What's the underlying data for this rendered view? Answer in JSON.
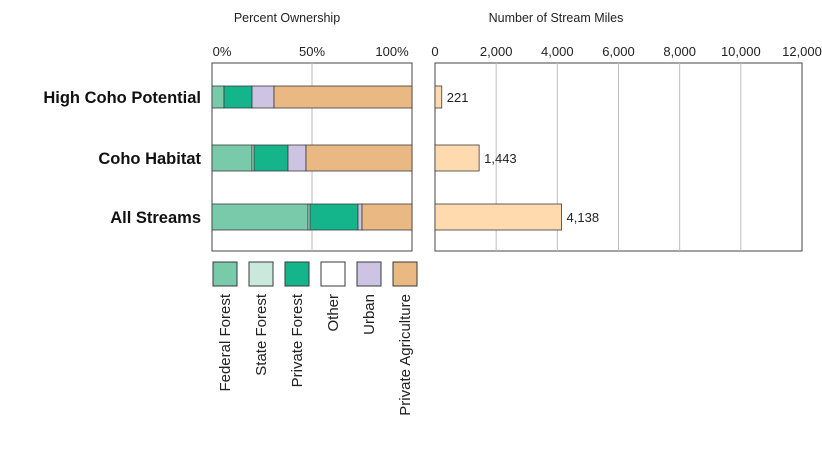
{
  "chart_data": [
    {
      "type": "bar",
      "orientation": "horizontal",
      "stacked": true,
      "percent": true,
      "title": "Percent Ownership",
      "categories": [
        "High Coho Potential",
        "Coho Habitat",
        "All Streams"
      ],
      "xlim": [
        0,
        100
      ],
      "ticks": [
        "0%",
        "50%",
        "100%"
      ],
      "grid": true,
      "series": [
        {
          "name": "Federal Forest",
          "color": "#79c9ab",
          "values": [
            6,
            20,
            48
          ]
        },
        {
          "name": "State Forest",
          "color": "#c9e9dc",
          "values": [
            0,
            1,
            1
          ]
        },
        {
          "name": "Private Forest",
          "color": "#14b58a",
          "values": [
            14,
            17,
            24
          ]
        },
        {
          "name": "Other",
          "color": "#ffffff",
          "values": [
            0,
            0,
            0
          ]
        },
        {
          "name": "Urban",
          "color": "#cdc4e3",
          "values": [
            11,
            9,
            2
          ]
        },
        {
          "name": "Private Agriculture",
          "color": "#e9b883",
          "values": [
            69,
            53,
            25
          ]
        }
      ],
      "legend": "bottom"
    },
    {
      "type": "bar",
      "orientation": "horizontal",
      "title": "Number of Stream Miles",
      "categories": [
        "High Coho Potential",
        "Coho Habitat",
        "All Streams"
      ],
      "values": [
        221,
        1443,
        4138
      ],
      "value_labels": [
        "221",
        "1,443",
        "4,138"
      ],
      "xlim": [
        0,
        12000
      ],
      "ticks": [
        "0",
        "2,000",
        "4,000",
        "6,000",
        "8,000",
        "10,000",
        "12,000"
      ],
      "grid": true,
      "color": "#ffdaae"
    }
  ]
}
